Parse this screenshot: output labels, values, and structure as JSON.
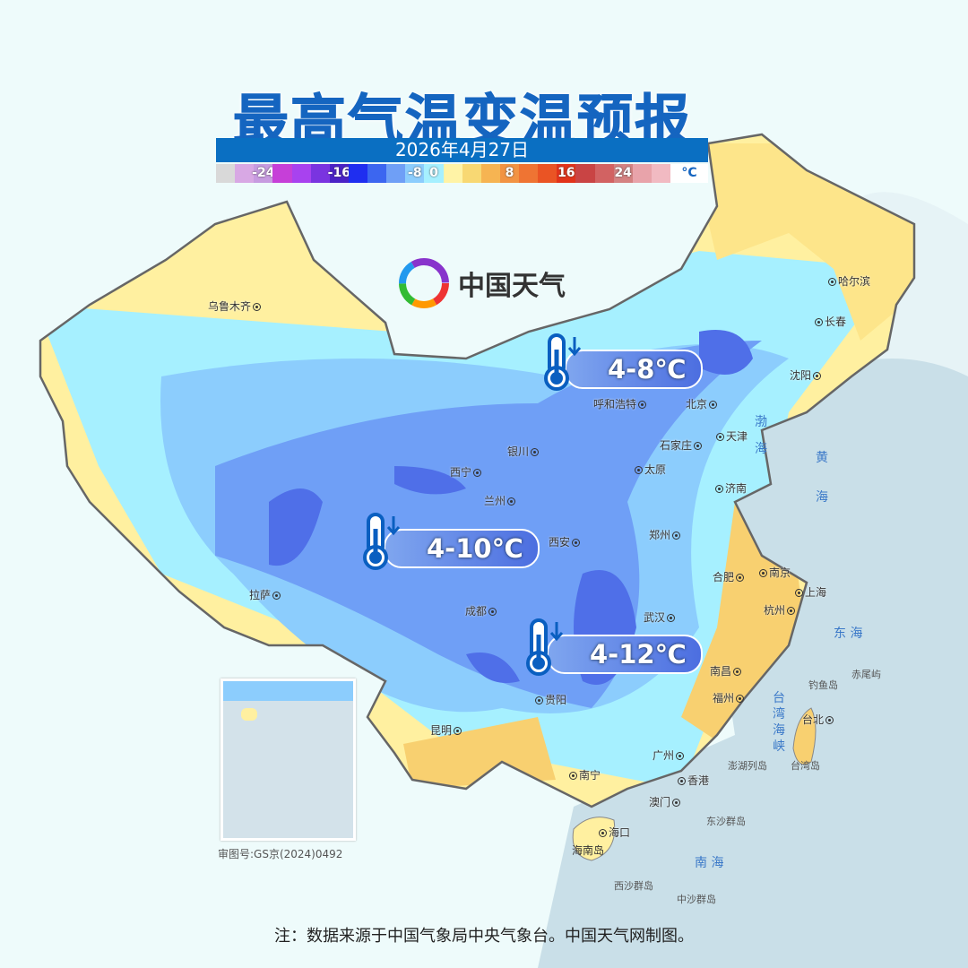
{
  "title": "最高气温变温预报",
  "date": "2026年4月27日",
  "legend": {
    "unit": "°C",
    "colors": [
      "#d9d9d9",
      "#d8a8e4",
      "#c79be0",
      "#c63fd8",
      "#a842ef",
      "#7a34e0",
      "#4a22c6",
      "#1f2ef0",
      "#3c66f0",
      "#6f9ff6",
      "#8ccdfd",
      "#a6f0ff",
      "#fff3a6",
      "#f8d873",
      "#f6b452",
      "#f29343",
      "#ef7433",
      "#ea5424",
      "#e2331a",
      "#c94444",
      "#d26262",
      "#d48282",
      "#e8a3aa",
      "#f1bac2"
    ],
    "labels": [
      "-24",
      "-16",
      "-8",
      "0",
      "8",
      "16",
      "24"
    ]
  },
  "brand": {
    "name": "中国天气"
  },
  "callouts": [
    {
      "text": "4-8℃",
      "icon": "thermometer-down-icon"
    },
    {
      "text": "4-10℃",
      "icon": "thermometer-down-icon"
    },
    {
      "text": "4-12℃",
      "icon": "thermometer-down-icon"
    }
  ],
  "cities": [
    "乌鲁木齐",
    "哈尔滨",
    "长春",
    "沈阳",
    "呼和浩特",
    "北京",
    "天津",
    "石家庄",
    "银川",
    "太原",
    "济南",
    "西宁",
    "兰州",
    "郑州",
    "西安",
    "合肥",
    "南京",
    "上海",
    "拉萨",
    "成都",
    "武汉",
    "杭州",
    "南昌",
    "贵阳",
    "福州",
    "昆明",
    "台北",
    "广州",
    "南宁",
    "香港",
    "澳门",
    "海口"
  ],
  "seas": [
    "渤",
    "海",
    "黄",
    "海",
    "东 海",
    "台",
    "湾",
    "海",
    "峡",
    "南 海"
  ],
  "places": [
    "钓鱼岛",
    "赤尾屿",
    "台湾岛",
    "澎湖列岛",
    "东沙群岛",
    "海南岛",
    "西沙群岛",
    "中沙群岛"
  ],
  "approval": "审图号:GS京(2024)0492",
  "note": "注：数据来源于中国气象局中央气象台。中国天气网制图。"
}
